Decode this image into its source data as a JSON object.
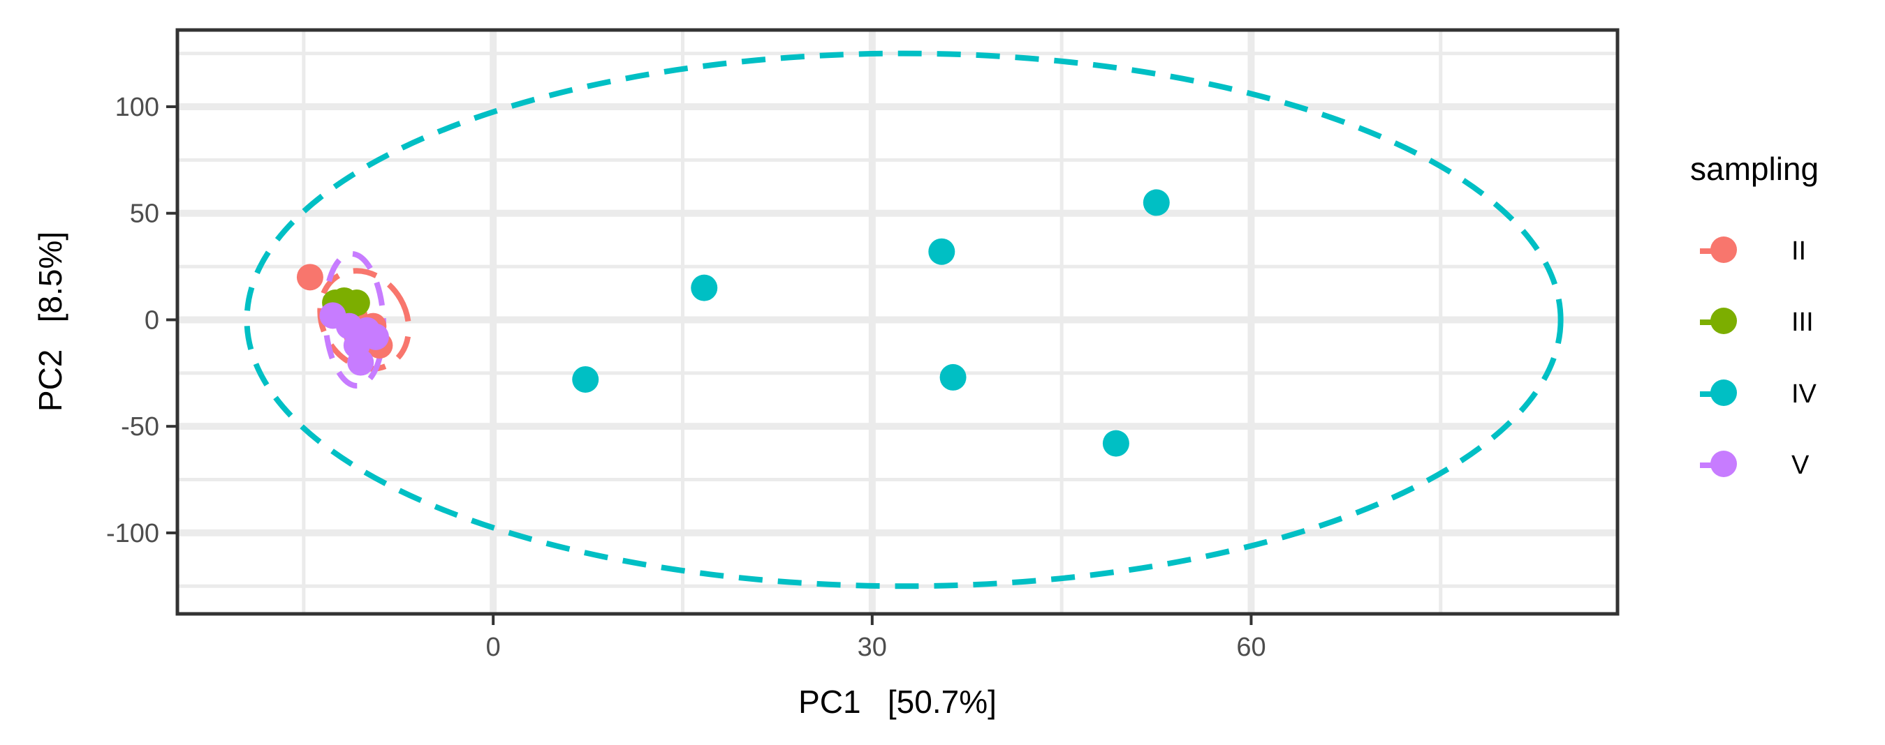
{
  "chart_data": {
    "type": "scatter",
    "xlabel": "PC1   [50.7%]",
    "ylabel": "PC2   [8.5%]",
    "xlim": [
      -25,
      89
    ],
    "ylim": [
      -138,
      136
    ],
    "x_ticks": [
      0,
      30,
      60
    ],
    "y_ticks": [
      100,
      50,
      0,
      -50,
      -100
    ],
    "x_tick_labels": [
      "0",
      "30",
      "60"
    ],
    "y_tick_labels": [
      "100",
      "50",
      "0",
      "-50",
      "-100"
    ],
    "grid": true,
    "legend": {
      "title": "sampling",
      "position": "right"
    },
    "series": [
      {
        "name": "II",
        "color": "#F8766D",
        "points": [
          {
            "x": -14.5,
            "y": 20
          },
          {
            "x": -11.5,
            "y": 8
          },
          {
            "x": -10.5,
            "y": -5
          },
          {
            "x": -10,
            "y": -10
          },
          {
            "x": -9.5,
            "y": -3
          },
          {
            "x": -11,
            "y": 2
          },
          {
            "x": -9,
            "y": -12
          },
          {
            "x": -10.8,
            "y": -7
          }
        ],
        "ellipse": {
          "cx": -10.2,
          "cy": 0,
          "rx": 3.3,
          "ry": 24,
          "angle": -30
        }
      },
      {
        "name": "III",
        "color": "#7CAE00",
        "points": [
          {
            "x": -12.5,
            "y": 8
          },
          {
            "x": -11.8,
            "y": 9
          },
          {
            "x": -11.2,
            "y": 7
          },
          {
            "x": -10.8,
            "y": 8
          },
          {
            "x": -12,
            "y": 7.5
          }
        ],
        "ellipse": {
          "cx": -11.8,
          "cy": 8,
          "rx": 1.4,
          "ry": 3.5,
          "angle": 0
        }
      },
      {
        "name": "IV",
        "color": "#00BFC4",
        "points": [
          {
            "x": 7.3,
            "y": -28
          },
          {
            "x": 16.7,
            "y": 15
          },
          {
            "x": 35.5,
            "y": 32
          },
          {
            "x": 36.4,
            "y": -27
          },
          {
            "x": 49.3,
            "y": -58
          },
          {
            "x": 52.5,
            "y": 55
          }
        ],
        "ellipse": {
          "cx": 32.5,
          "cy": 0,
          "rx": 52,
          "ry": 125,
          "angle": 0
        }
      },
      {
        "name": "V",
        "color": "#C77CFF",
        "points": [
          {
            "x": -12.7,
            "y": 2
          },
          {
            "x": -10.8,
            "y": -12
          },
          {
            "x": -10.5,
            "y": -20
          },
          {
            "x": -10,
            "y": -5
          },
          {
            "x": -9.3,
            "y": -8
          },
          {
            "x": -11.4,
            "y": -3
          }
        ],
        "ellipse": {
          "cx": -11,
          "cy": 0,
          "rx": 2.3,
          "ry": 31,
          "angle": -3
        }
      }
    ]
  }
}
